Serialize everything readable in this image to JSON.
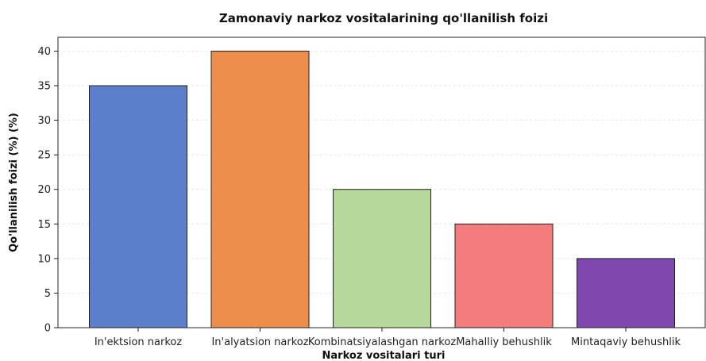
{
  "chart_data": {
    "type": "bar",
    "title": "Zamonaviy narkoz vositalarining qo'llanilish foizi",
    "xlabel": "Narkoz vositalari turi",
    "ylabel": "Qo'llanilish foizi (%) (%)",
    "categories": [
      "In'ektsion narkoz",
      "In'alyatsion narkoz",
      "Kombinatsiyalashgan narkoz",
      "Mahalliy behushlik",
      "Mintaqaviy behushlik"
    ],
    "values": [
      35,
      40,
      20,
      15,
      10
    ],
    "colors": [
      "#5b7fcb",
      "#ee8e4d",
      "#b6d89a",
      "#f47c7c",
      "#7e48ae"
    ],
    "ylim": [
      0,
      42
    ],
    "yticks": [
      0,
      5,
      10,
      15,
      20,
      25,
      30,
      35,
      40
    ],
    "grid": "y-dashed",
    "legend": "none"
  }
}
